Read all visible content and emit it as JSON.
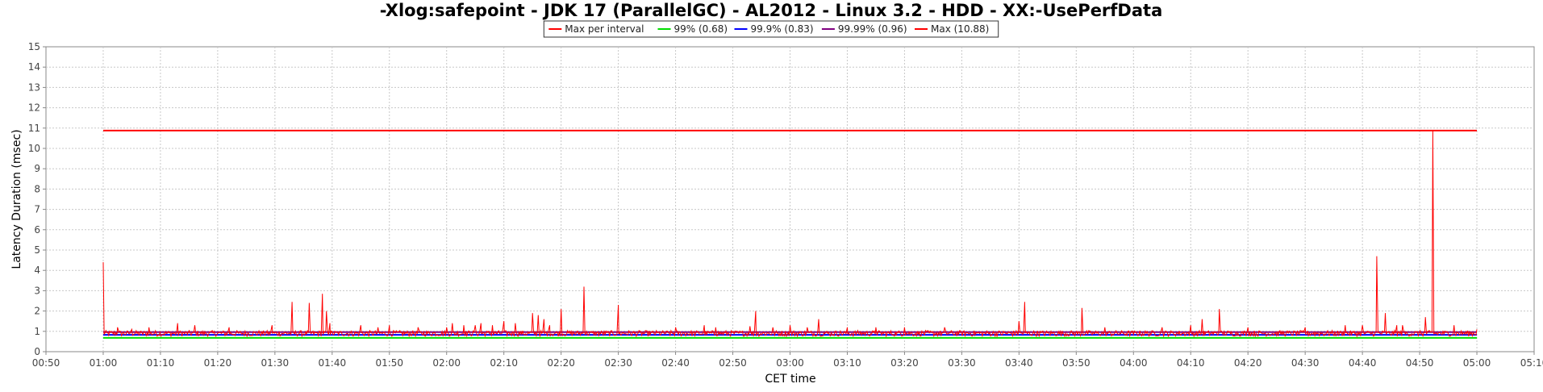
{
  "chart_data": {
    "type": "line",
    "title": "-Xlog:safepoint - JDK 17 (ParallelGC) - AL2012 - Linux 3.2 - HDD - XX:-UsePerfData",
    "xlabel": "CET time",
    "ylabel": "Latency Duration (msec)",
    "x_unit": "minutes",
    "xlim": [
      -10,
      250
    ],
    "ylim": [
      0,
      15
    ],
    "grid": true,
    "legend_position": "top-center",
    "x_ticks": [
      {
        "value": -10,
        "label": "00:50"
      },
      {
        "value": 0,
        "label": "01:00"
      },
      {
        "value": 10,
        "label": "01:10"
      },
      {
        "value": 20,
        "label": "01:20"
      },
      {
        "value": 30,
        "label": "01:30"
      },
      {
        "value": 40,
        "label": "01:40"
      },
      {
        "value": 50,
        "label": "01:50"
      },
      {
        "value": 60,
        "label": "02:00"
      },
      {
        "value": 70,
        "label": "02:10"
      },
      {
        "value": 80,
        "label": "02:20"
      },
      {
        "value": 90,
        "label": "02:30"
      },
      {
        "value": 100,
        "label": "02:40"
      },
      {
        "value": 110,
        "label": "02:50"
      },
      {
        "value": 120,
        "label": "03:00"
      },
      {
        "value": 130,
        "label": "03:10"
      },
      {
        "value": 140,
        "label": "03:20"
      },
      {
        "value": 150,
        "label": "03:30"
      },
      {
        "value": 160,
        "label": "03:40"
      },
      {
        "value": 170,
        "label": "03:50"
      },
      {
        "value": 180,
        "label": "04:00"
      },
      {
        "value": 190,
        "label": "04:10"
      },
      {
        "value": 200,
        "label": "04:20"
      },
      {
        "value": 210,
        "label": "04:30"
      },
      {
        "value": 220,
        "label": "04:40"
      },
      {
        "value": 230,
        "label": "04:50"
      },
      {
        "value": 240,
        "label": "05:00"
      },
      {
        "value": 250,
        "label": "05:10"
      }
    ],
    "y_ticks": [
      0,
      1,
      2,
      3,
      4,
      5,
      6,
      7,
      8,
      9,
      10,
      11,
      12,
      13,
      14,
      15
    ],
    "series": [
      {
        "name": "Max per interval",
        "color": "#ff0000",
        "style": "noisy",
        "x_range": [
          0,
          240
        ],
        "baseline": 0.9,
        "spikes": [
          [
            0,
            4.4
          ],
          [
            2.5,
            1.2
          ],
          [
            5,
            1.1
          ],
          [
            8,
            1.2
          ],
          [
            13,
            1.4
          ],
          [
            16,
            1.3
          ],
          [
            22,
            1.2
          ],
          [
            29.5,
            1.3
          ],
          [
            33,
            2.45
          ],
          [
            36,
            2.4
          ],
          [
            38.3,
            2.85
          ],
          [
            39,
            2.0
          ],
          [
            39.6,
            1.4
          ],
          [
            45,
            1.3
          ],
          [
            48,
            1.2
          ],
          [
            50,
            1.3
          ],
          [
            55,
            1.2
          ],
          [
            60,
            1.2
          ],
          [
            61,
            1.4
          ],
          [
            63,
            1.3
          ],
          [
            65,
            1.3
          ],
          [
            66,
            1.4
          ],
          [
            68,
            1.3
          ],
          [
            70,
            1.5
          ],
          [
            72,
            1.4
          ],
          [
            75,
            1.9
          ],
          [
            76,
            1.8
          ],
          [
            77,
            1.6
          ],
          [
            78,
            1.3
          ],
          [
            80,
            2.1
          ],
          [
            84,
            3.2
          ],
          [
            90,
            2.3
          ],
          [
            100,
            1.2
          ],
          [
            105,
            1.3
          ],
          [
            107,
            1.2
          ],
          [
            113,
            1.25
          ],
          [
            114,
            2.0
          ],
          [
            117,
            1.2
          ],
          [
            120,
            1.3
          ],
          [
            123,
            1.2
          ],
          [
            125,
            1.6
          ],
          [
            130,
            1.2
          ],
          [
            135,
            1.2
          ],
          [
            140,
            1.2
          ],
          [
            147,
            1.2
          ],
          [
            160,
            1.5
          ],
          [
            161,
            2.45
          ],
          [
            171,
            2.15
          ],
          [
            175,
            1.2
          ],
          [
            185,
            1.2
          ],
          [
            190,
            1.3
          ],
          [
            192,
            1.6
          ],
          [
            195,
            2.1
          ],
          [
            200,
            1.2
          ],
          [
            210,
            1.2
          ],
          [
            217,
            1.3
          ],
          [
            220,
            1.3
          ],
          [
            222.5,
            4.7
          ],
          [
            224,
            1.9
          ],
          [
            226,
            1.3
          ],
          [
            227,
            1.3
          ],
          [
            231,
            1.7
          ],
          [
            232.3,
            10.88
          ],
          [
            236,
            1.3
          ],
          [
            240,
            1.1
          ]
        ]
      },
      {
        "name": "99% (0.68)",
        "color": "#00dd00",
        "style": "flat",
        "x_range": [
          0,
          240
        ],
        "y": 0.68
      },
      {
        "name": "99.9% (0.83)",
        "color": "#0000ff",
        "style": "flat",
        "x_range": [
          0,
          240
        ],
        "y": 0.83
      },
      {
        "name": "99.99% (0.96)",
        "color": "#800080",
        "style": "flat",
        "x_range": [
          0,
          240
        ],
        "y": 0.96
      },
      {
        "name": "Max (10.88)",
        "color": "#ff0000",
        "style": "flat",
        "x_range": [
          0,
          240
        ],
        "y": 10.88
      }
    ]
  }
}
